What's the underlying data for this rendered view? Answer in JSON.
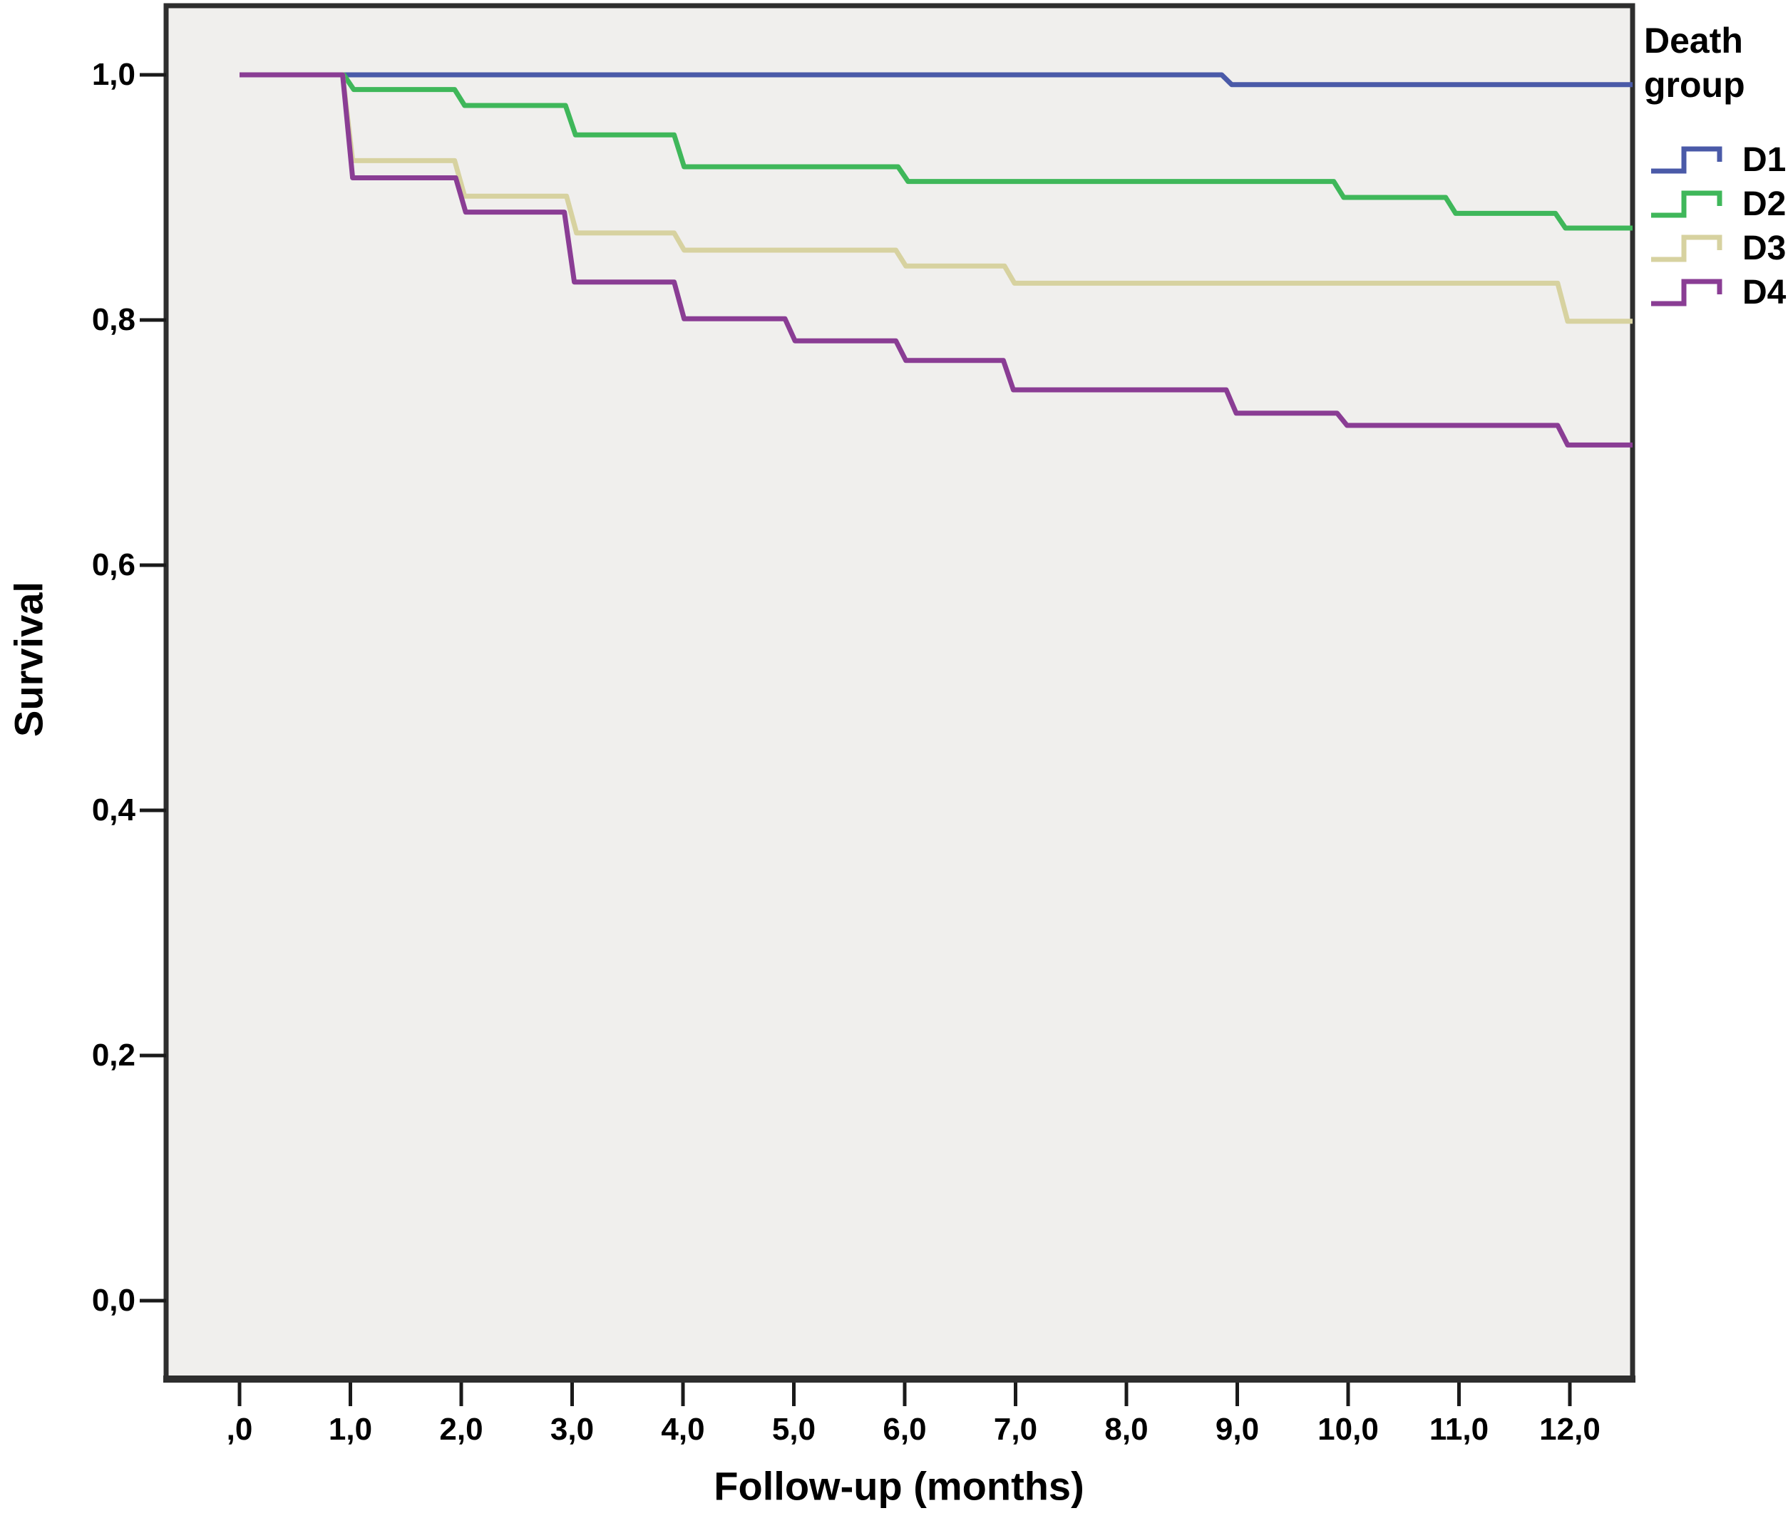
{
  "chart_data": {
    "type": "line",
    "subtype": "kaplan-meier-step-survival",
    "title": "",
    "xlabel": "Follow-up (months)",
    "ylabel": "Survival",
    "xlim": [
      -0.66,
      12.57
    ],
    "ylim": [
      -0.06,
      1.06
    ],
    "grid": false,
    "plot_bg": "#F0EFED",
    "frame_color": "#2E2E2E",
    "tick_color": "#1A1A1A",
    "x_ticks": {
      "values": [
        0,
        1,
        2,
        3,
        4,
        5,
        6,
        7,
        8,
        9,
        10,
        11,
        12
      ],
      "labels": [
        ",0",
        "1,0",
        "2,0",
        "3,0",
        "4,0",
        "5,0",
        "6,0",
        "7,0",
        "8,0",
        "9,0",
        "10,0",
        "11,0",
        "12,0"
      ]
    },
    "y_ticks": {
      "values": [
        1.0,
        0.8,
        0.6,
        0.4,
        0.2,
        0.0
      ],
      "labels": [
        "1,0",
        "0,8",
        "0,6",
        "0,4",
        "0,2",
        "0,0"
      ]
    },
    "x_end": 12.57,
    "legend_position": "right",
    "series": [
      {
        "name": "D1",
        "color": "#4A5AA8",
        "steps": [
          [
            0,
            1.0
          ],
          [
            8.86,
            0.992
          ]
        ]
      },
      {
        "name": "D2",
        "color": "#3FB75A",
        "steps": [
          [
            0,
            1.0
          ],
          [
            0.94,
            0.988
          ],
          [
            1.94,
            0.975
          ],
          [
            2.94,
            0.951
          ],
          [
            3.92,
            0.925
          ],
          [
            5.94,
            0.913
          ],
          [
            9.87,
            0.9
          ],
          [
            10.88,
            0.887
          ],
          [
            11.87,
            0.875
          ]
        ]
      },
      {
        "name": "D3",
        "color": "#D7D2A0",
        "steps": [
          [
            0,
            1.0
          ],
          [
            0.93,
            0.93
          ],
          [
            1.94,
            0.901
          ],
          [
            2.95,
            0.871
          ],
          [
            3.92,
            0.857
          ],
          [
            5.92,
            0.844
          ],
          [
            6.9,
            0.83
          ],
          [
            11.89,
            0.799
          ]
        ]
      },
      {
        "name": "D4",
        "color": "#8A3D94",
        "steps": [
          [
            0,
            1.0
          ],
          [
            0.93,
            0.916
          ],
          [
            1.95,
            0.888
          ],
          [
            2.93,
            0.831
          ],
          [
            3.92,
            0.801
          ],
          [
            4.92,
            0.783
          ],
          [
            5.92,
            0.767
          ],
          [
            6.89,
            0.743
          ],
          [
            8.9,
            0.724
          ],
          [
            9.9,
            0.714
          ],
          [
            11.89,
            0.698
          ]
        ]
      }
    ]
  },
  "legend": {
    "title": "Death\ngroup",
    "items": [
      {
        "label": "D1"
      },
      {
        "label": "D2"
      },
      {
        "label": "D3"
      },
      {
        "label": "D4"
      }
    ]
  }
}
